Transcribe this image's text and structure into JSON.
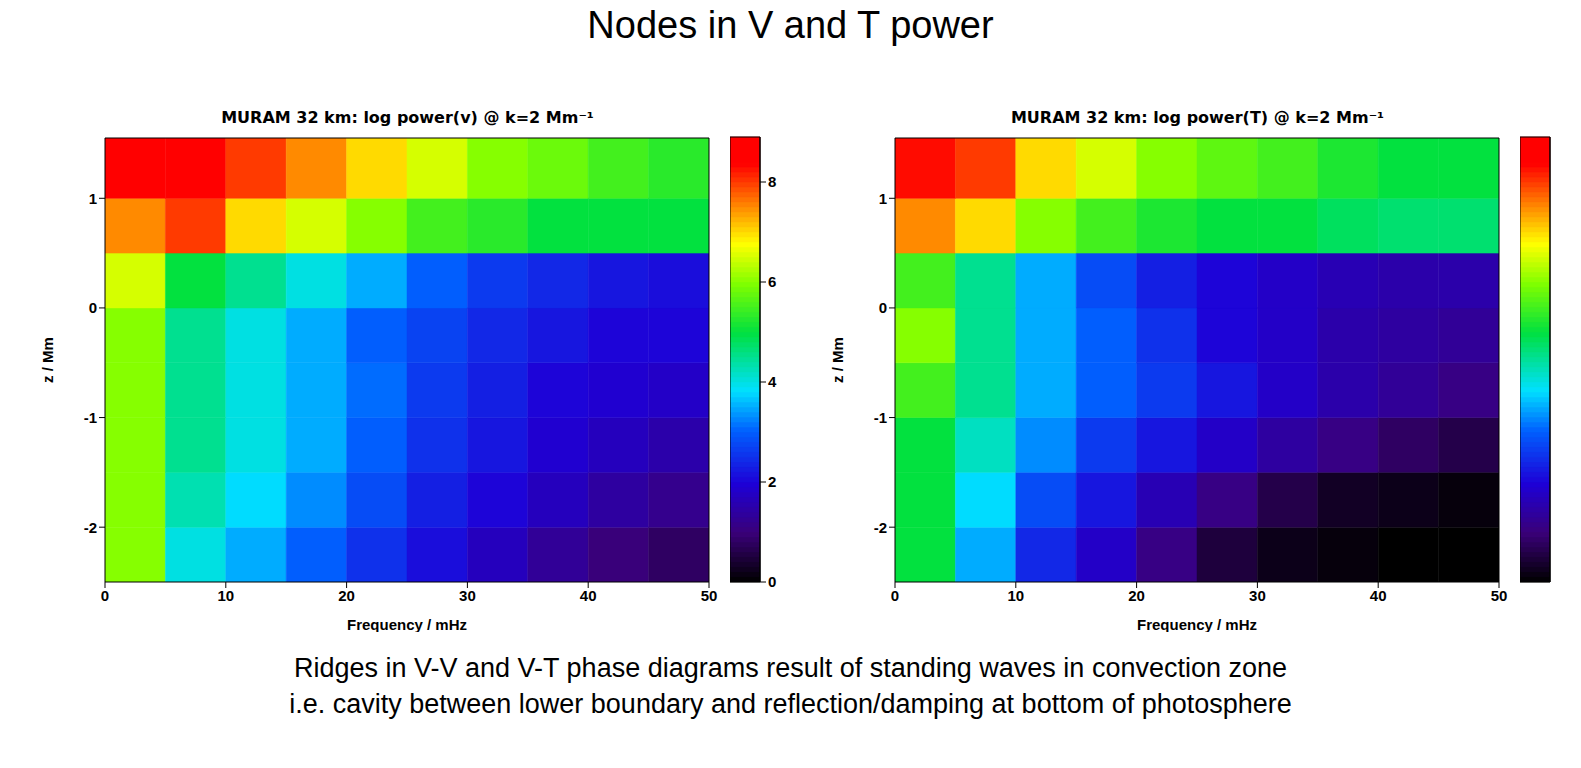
{
  "title": "Nodes in V and T power",
  "caption": [
    "Ridges in V-V and V-T phase diagrams result of standing waves in convection zone",
    "i.e. cavity between lower boundary and reflection/damping at bottom of photosphere"
  ],
  "chart_data": [
    {
      "type": "heatmap",
      "title": "MURAM 32 km: log power(v) @ k=2 Mm⁻¹",
      "x_label": "Frequency / mHz",
      "y_label": "z / Mm",
      "xlim": [
        0,
        50
      ],
      "ylim": [
        -2.5,
        1.55
      ],
      "xticks": [
        0,
        10,
        20,
        30,
        40,
        50
      ],
      "yticks": [
        -2,
        -1,
        0,
        1
      ],
      "x_edges": [
        0,
        5,
        10,
        15,
        20,
        25,
        30,
        35,
        40,
        45,
        50
      ],
      "y_edges": [
        -2.5,
        -2,
        -1.5,
        -1,
        -0.5,
        0,
        0.5,
        1,
        1.55
      ],
      "cells": [
        [
          6,
          4,
          3.5,
          3,
          2.5,
          2.1,
          1.7,
          1.3,
          1,
          0.8
        ],
        [
          6,
          4.3,
          3.8,
          3.3,
          2.8,
          2.3,
          2,
          1.7,
          1.4,
          1.2
        ],
        [
          6,
          4.5,
          4,
          3.5,
          3,
          2.5,
          2.2,
          1.9,
          1.7,
          1.5
        ],
        [
          6,
          4.5,
          4,
          3.5,
          3.1,
          2.6,
          2.3,
          2,
          1.9,
          1.8
        ],
        [
          6,
          4.5,
          4,
          3.5,
          3,
          2.7,
          2.4,
          2.2,
          2,
          2
        ],
        [
          6.5,
          5,
          4.5,
          4,
          3.5,
          3,
          2.6,
          2.4,
          2.2,
          2.1
        ],
        [
          7.5,
          8,
          7,
          6.5,
          6,
          5.5,
          5.3,
          5,
          5,
          5
        ],
        [
          8.5,
          8.8,
          8,
          7.5,
          7,
          6.5,
          6,
          5.8,
          5.5,
          5.3
        ]
      ],
      "colorbar": {
        "range": [
          0,
          8.9
        ],
        "ticks": [
          0,
          2,
          4,
          6,
          8
        ]
      }
    },
    {
      "type": "heatmap",
      "title": "MURAM 32 km: log power(T) @ k=2 Mm⁻¹",
      "x_label": "Frequency / mHz",
      "y_label": "z / Mm",
      "xlim": [
        0,
        50
      ],
      "ylim": [
        -2.5,
        1.55
      ],
      "xticks": [
        0,
        10,
        20,
        30,
        40,
        50
      ],
      "yticks": [
        -2,
        -1,
        0,
        1
      ],
      "x_edges": [
        0,
        5,
        10,
        15,
        20,
        25,
        30,
        35,
        40,
        45,
        50
      ],
      "y_edges": [
        -2.5,
        -2,
        -1.5,
        -1,
        -0.5,
        0,
        0.5,
        1,
        1.55
      ],
      "cells": [
        [
          5,
          3.5,
          2.4,
          1.8,
          1.1,
          0.5,
          0.2,
          0.1,
          0,
          0
        ],
        [
          5,
          3.8,
          2.8,
          2.2,
          1.6,
          1.1,
          0.6,
          0.3,
          0.2,
          0.1
        ],
        [
          5,
          4.2,
          3.3,
          2.6,
          2.2,
          1.8,
          1.4,
          1.1,
          0.8,
          0.6
        ],
        [
          5.5,
          4.5,
          3.5,
          3,
          2.6,
          2.2,
          1.8,
          1.5,
          1.3,
          1.1
        ],
        [
          6,
          4.5,
          3.5,
          3,
          2.5,
          2,
          1.8,
          1.5,
          1.4,
          1.3
        ],
        [
          5.5,
          4.5,
          3.5,
          2.8,
          2.3,
          2,
          1.8,
          1.6,
          1.5,
          1.5
        ],
        [
          7.5,
          7,
          6,
          5.5,
          5.2,
          5,
          5,
          4.8,
          4.7,
          4.7
        ],
        [
          8.3,
          8,
          7,
          6.5,
          6,
          5.7,
          5.5,
          5.2,
          5,
          5
        ]
      ],
      "colorbar": {
        "range": [
          0,
          8.9
        ]
      }
    }
  ]
}
